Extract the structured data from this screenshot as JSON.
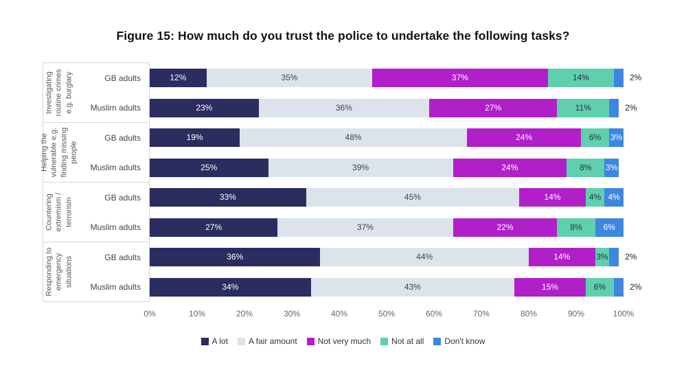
{
  "title": "Figure 15: How much do you trust the police to undertake the following tasks?",
  "chart_data": {
    "type": "bar",
    "orientation": "horizontal",
    "stacked": true,
    "title": "Figure 15: How much do you trust the police to undertake the following tasks?",
    "legend": [
      "A lot",
      "A fair amount",
      "Not very much",
      "Not at all",
      "Don't know"
    ],
    "legend_position": "bottom",
    "colors": [
      "#2b2c5f",
      "#dce3ea",
      "#b11fc9",
      "#5fcfae",
      "#3e86e0"
    ],
    "label_colors": [
      "#ffffff",
      "#3f4450",
      "#ffffff",
      "#24313b",
      "#ffffff"
    ],
    "value_suffix": "%",
    "outside_label_threshold": 3,
    "xlim": [
      0,
      100
    ],
    "grid": false,
    "x_ticks": [
      "0%",
      "10%",
      "20%",
      "30%",
      "40%",
      "50%",
      "60%",
      "70%",
      "80%",
      "90%",
      "100%"
    ],
    "groups": [
      {
        "category": "Investigating routine crimes e.g. burglary",
        "rows": [
          {
            "label": "GB adults",
            "values": [
              12,
              35,
              37,
              14,
              2
            ]
          },
          {
            "label": "Muslim adults",
            "values": [
              23,
              36,
              27,
              11,
              2
            ]
          }
        ]
      },
      {
        "category": "Helping the vulnerable e.g. finding missing people",
        "rows": [
          {
            "label": "GB adults",
            "values": [
              19,
              48,
              24,
              6,
              3
            ]
          },
          {
            "label": "Muslim adults",
            "values": [
              25,
              39,
              24,
              8,
              3
            ]
          }
        ]
      },
      {
        "category": "Countering extremism / terrorism",
        "rows": [
          {
            "label": "GB adults",
            "values": [
              33,
              45,
              14,
              4,
              4
            ]
          },
          {
            "label": "Muslim adults",
            "values": [
              27,
              37,
              22,
              8,
              6
            ]
          }
        ]
      },
      {
        "category": "Responding to emergency situations",
        "rows": [
          {
            "label": "GB adults",
            "values": [
              36,
              44,
              14,
              3,
              2
            ]
          },
          {
            "label": "Muslim adults",
            "values": [
              34,
              43,
              15,
              6,
              2
            ]
          }
        ]
      }
    ]
  }
}
